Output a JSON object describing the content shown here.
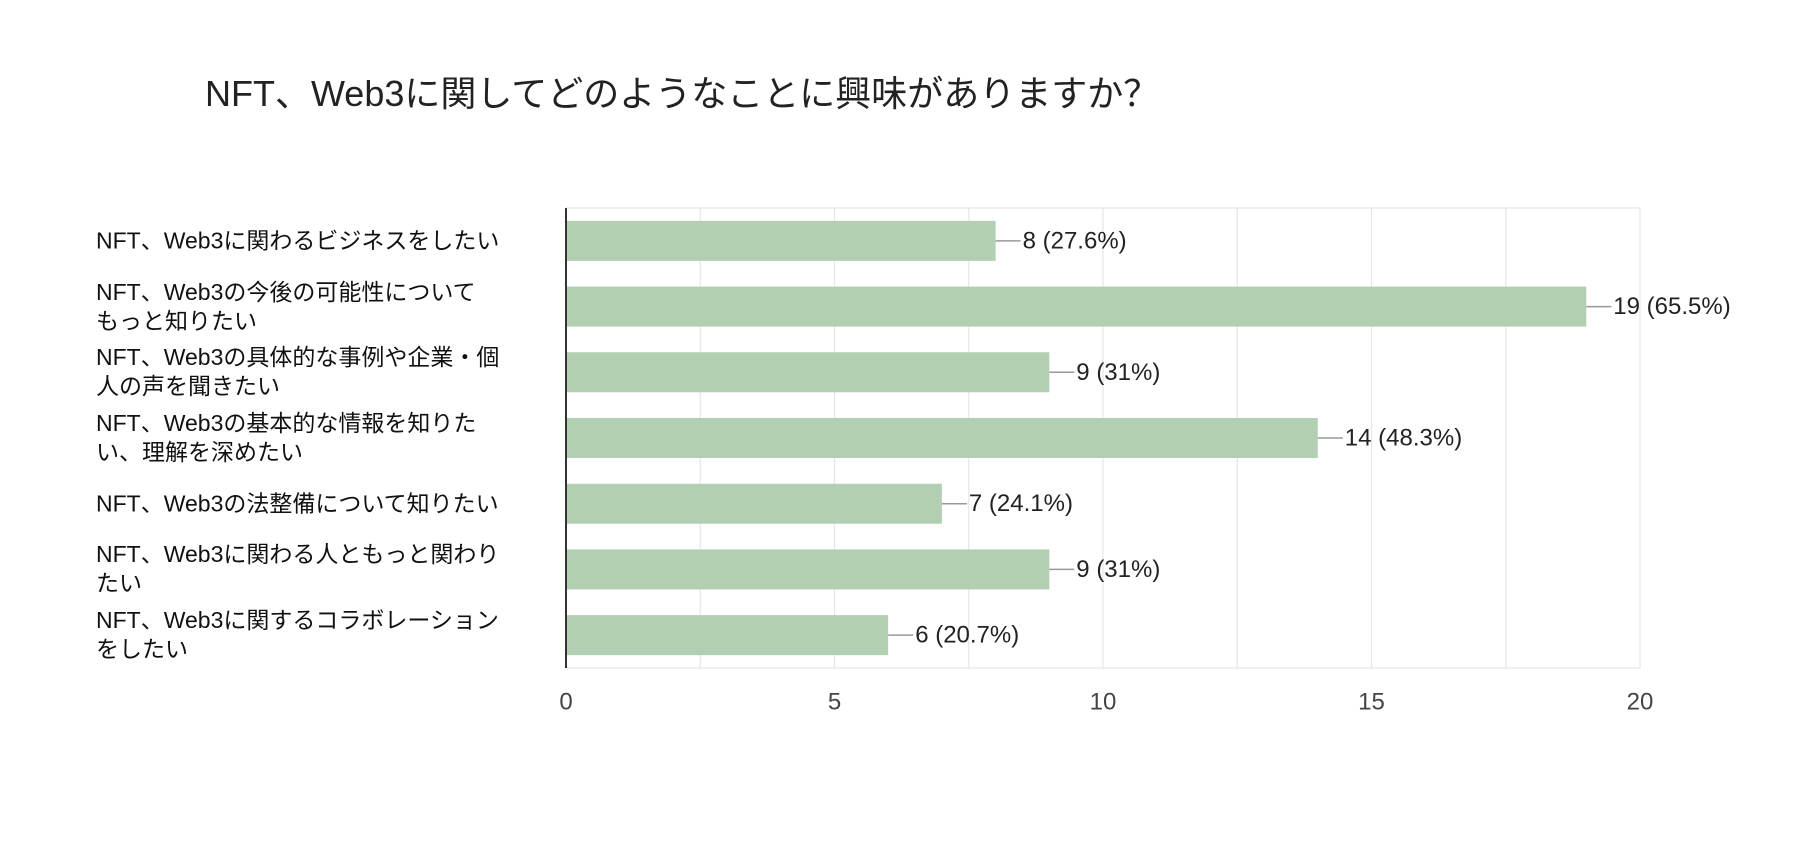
{
  "chart_data": {
    "type": "bar",
    "orientation": "horizontal",
    "title": "NFT、Web3に関してどのようなことに興味がありますか？",
    "categories": [
      "NFT、Web3に関わるビジネスをしたい",
      "NFT、Web3の今後の可能性について\nもっと知りたい",
      "NFT、Web3の具体的な事例や企業・個\n人の声を聞きたい",
      "NFT、Web3の基本的な情報を知りた\nい、理解を深めたい",
      "NFT、Web3の法整備について知りたい",
      "NFT、Web3に関わる人ともっと関わり\nたい",
      "NFT、Web3に関するコラボレーション\nをしたい"
    ],
    "values": [
      8,
      19,
      9,
      14,
      7,
      9,
      6
    ],
    "value_labels": [
      "8 (27.6%)",
      "19 (65.5%)",
      "9 (31%)",
      "14 (48.3%)",
      "7 (24.1%)",
      "9 (31%)",
      "6 (20.7%)"
    ],
    "x_ticks": [
      "0",
      "5",
      "10",
      "15",
      "20"
    ],
    "xlim": [
      0,
      20
    ],
    "grid": true,
    "legend": "none",
    "colors": {
      "bar": "#b2cfb2",
      "leader": "#999999",
      "grid": "#e6e6e6",
      "axis": "#333333"
    }
  }
}
